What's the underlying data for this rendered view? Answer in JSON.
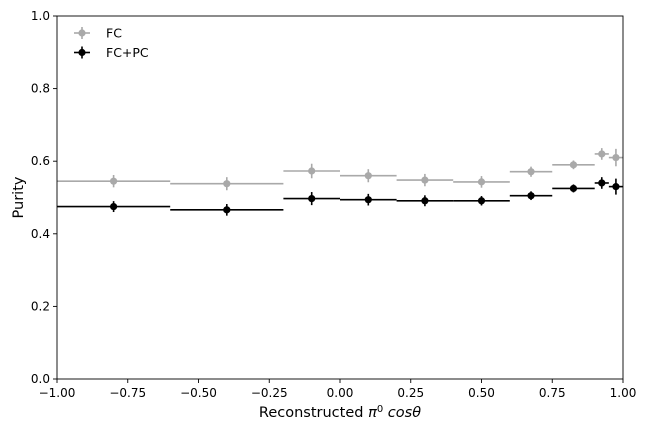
{
  "chart_data": {
    "type": "scatter",
    "title": "",
    "xlabel_prefix": "Reconstructed ",
    "xlabel_pi": "π",
    "xlabel_sup": "0",
    "xlabel_suffix": " cosθ",
    "xlabel": "Reconstructed π0 cosθ",
    "ylabel": "Purity",
    "xlim": [
      -1.0,
      1.0
    ],
    "ylim": [
      0.0,
      1.0
    ],
    "xticks": [
      -1.0,
      -0.75,
      -0.5,
      -0.25,
      0.0,
      0.25,
      0.5,
      0.75,
      1.0
    ],
    "xtick_labels": [
      "−1.00",
      "−0.75",
      "−0.50",
      "−0.25",
      "0.00",
      "0.25",
      "0.50",
      "0.75",
      "1.00"
    ],
    "yticks": [
      0.0,
      0.2,
      0.4,
      0.6,
      0.8,
      1.0
    ],
    "ytick_labels": [
      "0.0",
      "0.2",
      "0.4",
      "0.6",
      "0.8",
      "1.0"
    ],
    "grid": false,
    "legend_position": "top-left",
    "bins": [
      [
        -1.0,
        -0.6
      ],
      [
        -0.6,
        -0.2
      ],
      [
        -0.2,
        0.0
      ],
      [
        0.0,
        0.2
      ],
      [
        0.2,
        0.4
      ],
      [
        0.4,
        0.6
      ],
      [
        0.6,
        0.75
      ],
      [
        0.75,
        0.9
      ],
      [
        0.9,
        0.95
      ],
      [
        0.95,
        1.0
      ]
    ],
    "x": [
      -0.8,
      -0.4,
      -0.1,
      0.1,
      0.3,
      0.5,
      0.675,
      0.825,
      0.925,
      0.975
    ],
    "series": [
      {
        "name": "FC",
        "color": "#a9a9a9",
        "values": [
          0.545,
          0.538,
          0.573,
          0.56,
          0.548,
          0.543,
          0.571,
          0.59,
          0.62,
          0.61
        ],
        "errors": [
          0.017,
          0.018,
          0.02,
          0.018,
          0.017,
          0.016,
          0.014,
          0.012,
          0.016,
          0.024
        ]
      },
      {
        "name": "FC+PC",
        "color": "#000000",
        "values": [
          0.475,
          0.466,
          0.497,
          0.494,
          0.491,
          0.491,
          0.505,
          0.525,
          0.54,
          0.53
        ],
        "errors": [
          0.015,
          0.016,
          0.018,
          0.016,
          0.015,
          0.013,
          0.012,
          0.011,
          0.016,
          0.022
        ]
      }
    ]
  }
}
